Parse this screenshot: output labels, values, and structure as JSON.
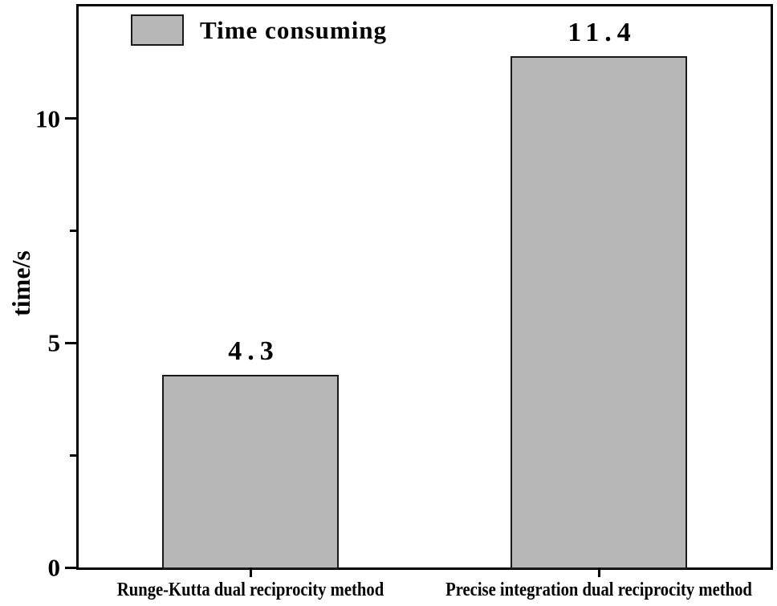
{
  "chart_data": {
    "type": "bar",
    "title": "",
    "categories": [
      "Runge-Kutta dual reciprocity method",
      "Precise integration dual reciprocity method"
    ],
    "values": [
      4.3,
      11.4
    ],
    "value_labels": [
      "4.3",
      "11.4"
    ],
    "xlabel": "",
    "ylabel": "time/s",
    "ylim": [
      0,
      12.5
    ],
    "yticks_major": [
      0,
      5,
      10
    ],
    "ytick_labels": [
      "0",
      "5",
      "10"
    ],
    "yticks_minor": [
      2.5,
      7.5
    ],
    "grid": false,
    "legend": {
      "label": "Time consuming",
      "position": "top-left"
    },
    "colors": {
      "bar_fill": "#b7b7b7",
      "bar_border": "#1a1a1a",
      "axis": "#000000",
      "background": "#ffffff",
      "text": "#000000"
    }
  }
}
